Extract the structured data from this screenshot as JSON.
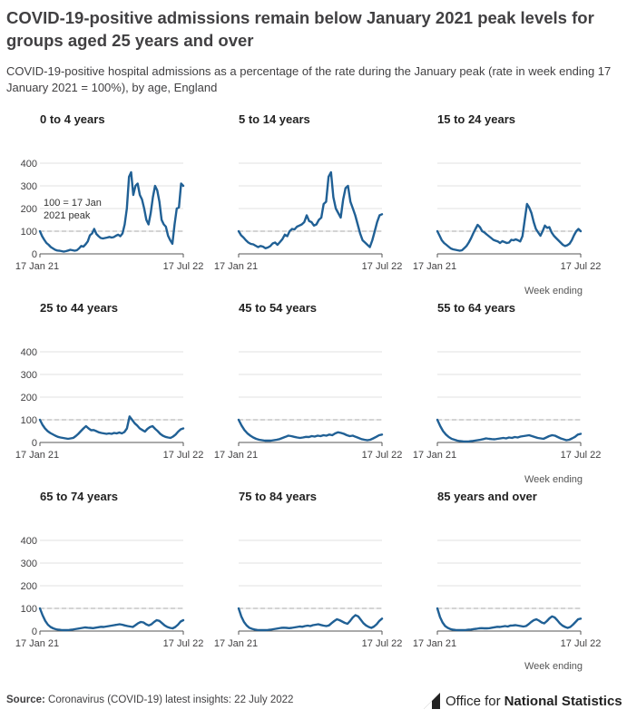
{
  "title": "COVID-19-positive admissions remain below January 2021 peak levels for groups aged 25 years and over",
  "subtitle": "COVID-19-positive hospital admissions as a percentage of the rate during the January peak (rate in week ending 17 January 2021 = 100%), by age, England",
  "source": {
    "label": "Source:",
    "text": "Coronavirus (COVID-19) latest insights: 22 July 2022"
  },
  "logo": {
    "icon": "ons-logo-icon",
    "text_plain": "Office for",
    "text_strong": "National Statistics"
  },
  "colors": {
    "line": "#206095",
    "reference": "#bbbbbb",
    "grid": "#e0e0e0",
    "axis": "#555555"
  },
  "chart_data": {
    "type": "line",
    "ylim": [
      0,
      400
    ],
    "yticks": [
      0,
      100,
      200,
      300,
      400
    ],
    "x_start_label": "17 Jan 21",
    "x_end_label": "17 Jul 22",
    "x_axis_title": "Week ending",
    "reference_value": 100,
    "reference_annotation": [
      "100 = 17 Jan",
      "2021 peak"
    ],
    "panels": [
      {
        "name": "0 to 4 years",
        "values": [
          100,
          78,
          62,
          48,
          40,
          30,
          24,
          18,
          15,
          14,
          12,
          10,
          12,
          15,
          18,
          16,
          14,
          16,
          24,
          35,
          32,
          42,
          55,
          82,
          90,
          110,
          88,
          78,
          70,
          68,
          70,
          72,
          75,
          72,
          74,
          80,
          85,
          78,
          90,
          130,
          200,
          340,
          360,
          260,
          300,
          310,
          260,
          240,
          200,
          150,
          130,
          180,
          250,
          300,
          280,
          230,
          150,
          130,
          120,
          80,
          60,
          45,
          130,
          200,
          205,
          310,
          300
        ]
      },
      {
        "name": "5 to 14 years",
        "values": [
          100,
          82,
          72,
          60,
          50,
          44,
          42,
          36,
          30,
          35,
          32,
          25,
          28,
          34,
          46,
          50,
          40,
          52,
          65,
          85,
          78,
          100,
          110,
          108,
          120,
          125,
          130,
          140,
          170,
          145,
          140,
          125,
          130,
          150,
          160,
          220,
          230,
          340,
          360,
          250,
          200,
          180,
          160,
          240,
          290,
          300,
          230,
          200,
          170,
          130,
          90,
          60,
          50,
          40,
          30,
          60,
          100,
          140,
          170,
          175
        ]
      },
      {
        "name": "15 to 24 years",
        "values": [
          100,
          80,
          60,
          48,
          40,
          32,
          24,
          20,
          18,
          16,
          14,
          16,
          25,
          35,
          50,
          68,
          90,
          110,
          128,
          118,
          100,
          95,
          86,
          78,
          70,
          62,
          58,
          55,
          48,
          56,
          52,
          48,
          50,
          62,
          60,
          64,
          60,
          55,
          78,
          150,
          220,
          205,
          180,
          140,
          110,
          95,
          80,
          100,
          125,
          115,
          118,
          95,
          80,
          70,
          60,
          50,
          40,
          35,
          38,
          45,
          60,
          82,
          100,
          110,
          100
        ]
      },
      {
        "name": "25 to 44 years",
        "values": [
          100,
          78,
          62,
          50,
          42,
          36,
          30,
          25,
          22,
          20,
          18,
          16,
          18,
          20,
          28,
          38,
          50,
          62,
          72,
          62,
          54,
          55,
          50,
          45,
          42,
          40,
          38,
          40,
          38,
          42,
          40,
          44,
          40,
          46,
          62,
          115,
          100,
          85,
          75,
          62,
          55,
          48,
          60,
          68,
          72,
          60,
          50,
          38,
          30,
          25,
          22,
          20,
          26,
          35,
          48,
          58,
          62
        ]
      },
      {
        "name": "45 to 54 years",
        "values": [
          100,
          75,
          55,
          40,
          30,
          22,
          16,
          12,
          10,
          8,
          8,
          8,
          10,
          12,
          15,
          20,
          25,
          30,
          28,
          25,
          22,
          20,
          22,
          25,
          24,
          28,
          26,
          30,
          28,
          32,
          30,
          35,
          32,
          40,
          45,
          42,
          38,
          32,
          28,
          30,
          25,
          20,
          15,
          12,
          10,
          12,
          18,
          25,
          32,
          35
        ]
      },
      {
        "name": "55 to 64 years",
        "values": [
          100,
          72,
          50,
          35,
          24,
          16,
          12,
          8,
          6,
          5,
          4,
          5,
          6,
          8,
          10,
          12,
          15,
          18,
          16,
          15,
          14,
          16,
          18,
          20,
          18,
          22,
          20,
          24,
          22,
          26,
          28,
          30,
          32,
          28,
          24,
          20,
          18,
          16,
          22,
          28,
          32,
          30,
          24,
          18,
          14,
          10,
          12,
          18,
          25,
          35,
          38
        ]
      },
      {
        "name": "65 to 74 years",
        "values": [
          100,
          70,
          45,
          28,
          18,
          12,
          8,
          6,
          5,
          4,
          4,
          5,
          6,
          8,
          10,
          12,
          14,
          16,
          15,
          14,
          13,
          15,
          17,
          19,
          18,
          20,
          22,
          24,
          26,
          28,
          30,
          28,
          25,
          22,
          20,
          18,
          26,
          35,
          40,
          38,
          30,
          25,
          30,
          40,
          48,
          45,
          35,
          25,
          18,
          14,
          12,
          18,
          28,
          42,
          48
        ]
      },
      {
        "name": "75 to 84 years",
        "values": [
          100,
          65,
          40,
          25,
          15,
          10,
          7,
          5,
          4,
          4,
          4,
          5,
          6,
          8,
          10,
          12,
          14,
          15,
          14,
          13,
          14,
          16,
          18,
          20,
          19,
          22,
          24,
          22,
          26,
          28,
          30,
          27,
          24,
          22,
          25,
          35,
          44,
          52,
          48,
          42,
          36,
          32,
          45,
          60,
          70,
          65,
          50,
          35,
          25,
          18,
          14,
          20,
          30,
          45,
          55
        ]
      },
      {
        "name": "85 years and over",
        "values": [
          100,
          62,
          38,
          22,
          14,
          9,
          6,
          5,
          4,
          4,
          4,
          5,
          6,
          7,
          9,
          10,
          12,
          13,
          12,
          12,
          13,
          15,
          17,
          19,
          18,
          20,
          22,
          20,
          24,
          25,
          26,
          24,
          22,
          20,
          22,
          30,
          40,
          48,
          52,
          46,
          38,
          34,
          44,
          56,
          65,
          60,
          48,
          34,
          24,
          18,
          14,
          18,
          28,
          40,
          52,
          55
        ]
      }
    ]
  }
}
